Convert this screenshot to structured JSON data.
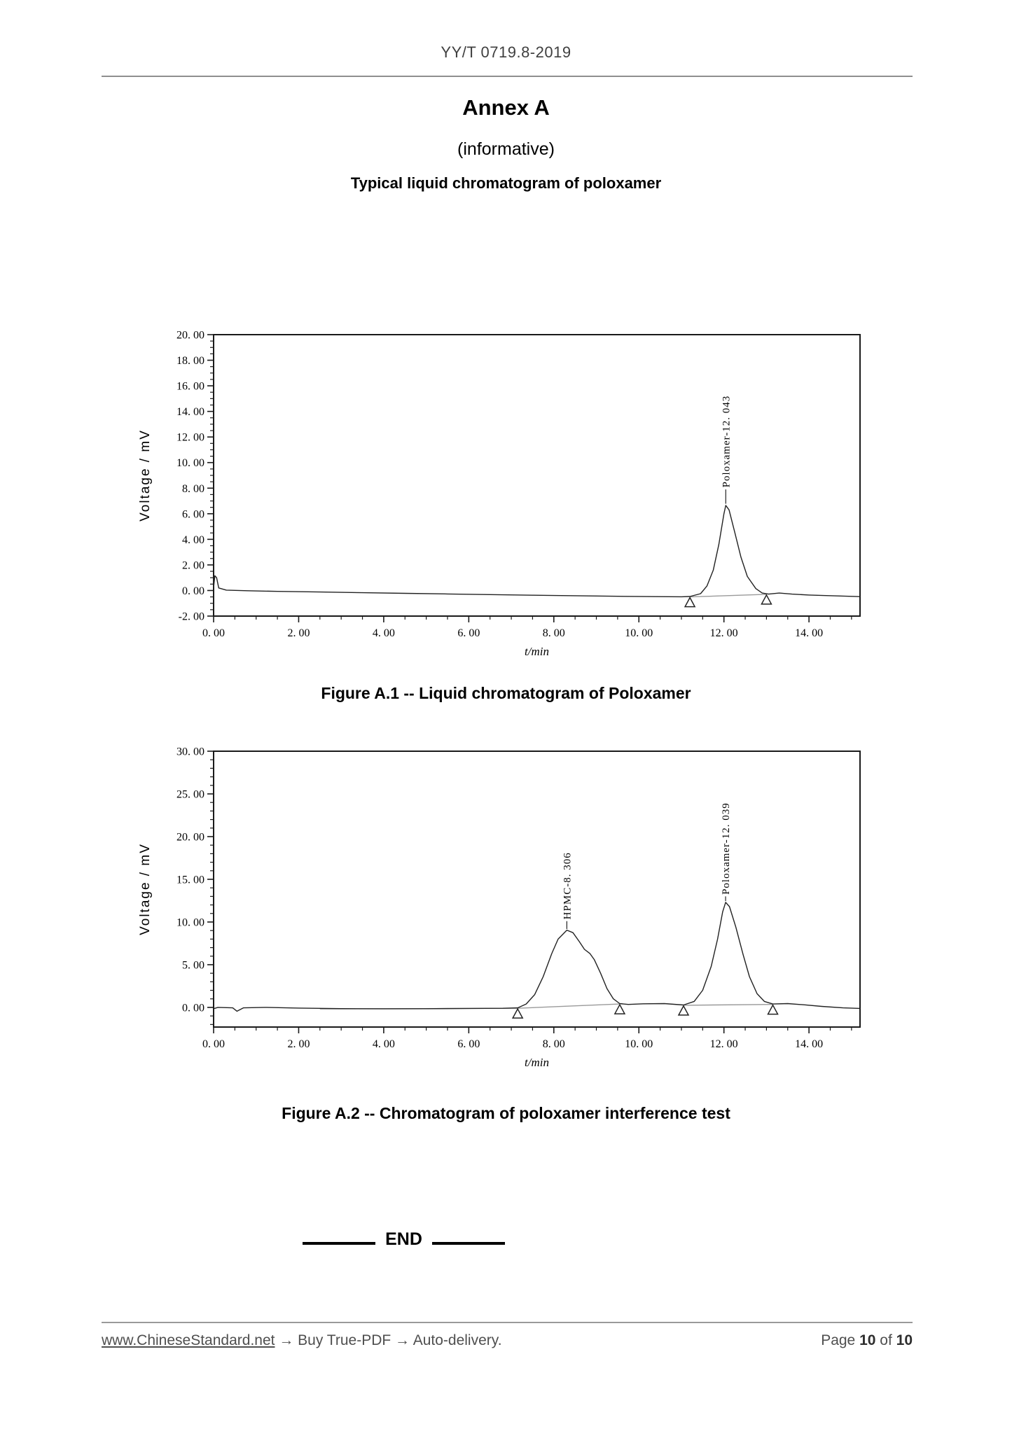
{
  "header": {
    "text": "YY/T 0719.8-2019"
  },
  "titles": {
    "annex": "Annex A",
    "informative": "(informative)",
    "subject": "Typical liquid chromatogram of poloxamer"
  },
  "captions": {
    "figure_a1": "Figure A.1 -- Liquid chromatogram of Poloxamer",
    "figure_a2": "Figure A.2 -- Chromatogram of poloxamer interference test"
  },
  "end_marker": {
    "label": "END"
  },
  "footer": {
    "link": "www.ChineseStandard.net",
    "tail": " → Buy True-PDF → Auto-delivery.",
    "page_label": "Page",
    "page_number": "10",
    "of_label": "of",
    "page_total": "10"
  },
  "chart_data": [
    {
      "type": "line",
      "name": "Figure A.1",
      "title": "Figure A.1 -- Liquid chromatogram of Poloxamer",
      "xlabel": "t/min",
      "ylabel": "Voltage / mV",
      "xlim": [
        0,
        15.2
      ],
      "ylim": [
        -2,
        20
      ],
      "grid": false,
      "x_tick_values": [
        0,
        2,
        4,
        6,
        8,
        10,
        12,
        14
      ],
      "x_tick_labels": [
        "0. 00",
        "2. 00",
        "4. 00",
        "6. 00",
        "8. 00",
        "10. 00",
        "12. 00",
        "14. 00"
      ],
      "x_minor_step": 0.5,
      "y_tick_values": [
        20,
        18,
        16,
        14,
        12,
        10,
        8,
        6,
        4,
        2,
        0,
        -2
      ],
      "y_tick_labels": [
        "20. 00",
        "18. 00",
        "16. 00",
        "14. 00",
        "12. 00",
        "10. 00",
        "8. 00",
        "6. 00",
        "4. 00",
        "2. 00",
        "0. 00",
        "-2. 00"
      ],
      "y_minor_step": 0.5,
      "peaks": [
        {
          "name": "Poloxamer",
          "retention_time_min": 12.043,
          "apex_mv": 6.65,
          "label": "Poloxamer-12. 043",
          "connector_mv": [
            6.78,
            7.9
          ],
          "label_start_mv": 8.05
        }
      ],
      "integration_markers": [
        [
          11.2,
          -0.5
        ],
        [
          13.0,
          -0.3
        ]
      ],
      "baseline_segments": [
        [
          [
            11.2,
            -0.5
          ],
          [
            13.0,
            -0.3
          ]
        ]
      ],
      "series": [
        {
          "name": "signal",
          "points": [
            [
              0,
              0.25
            ],
            [
              0.03,
              1.15
            ],
            [
              0.07,
              1.0
            ],
            [
              0.12,
              0.2
            ],
            [
              0.3,
              0.03
            ],
            [
              0.8,
              -0.02
            ],
            [
              1.5,
              -0.07
            ],
            [
              2.5,
              -0.12
            ],
            [
              3.5,
              -0.17
            ],
            [
              4.5,
              -0.22
            ],
            [
              5.5,
              -0.27
            ],
            [
              6.5,
              -0.32
            ],
            [
              7.5,
              -0.37
            ],
            [
              8.5,
              -0.41
            ],
            [
              9.5,
              -0.45
            ],
            [
              10.4,
              -0.48
            ],
            [
              11.0,
              -0.49
            ],
            [
              11.2,
              -0.47
            ],
            [
              11.45,
              -0.25
            ],
            [
              11.6,
              0.35
            ],
            [
              11.75,
              1.6
            ],
            [
              11.88,
              3.6
            ],
            [
              12.0,
              6.0
            ],
            [
              12.043,
              6.65
            ],
            [
              12.12,
              6.3
            ],
            [
              12.25,
              4.6
            ],
            [
              12.4,
              2.6
            ],
            [
              12.55,
              1.1
            ],
            [
              12.75,
              0.15
            ],
            [
              12.9,
              -0.2
            ],
            [
              13.05,
              -0.28
            ],
            [
              13.3,
              -0.2
            ],
            [
              13.6,
              -0.28
            ],
            [
              14.0,
              -0.35
            ],
            [
              14.6,
              -0.42
            ],
            [
              15.2,
              -0.48
            ]
          ]
        }
      ]
    },
    {
      "type": "line",
      "name": "Figure A.2",
      "title": "Figure A.2 -- Chromatogram of poloxamer interference test",
      "xlabel": "t/min",
      "ylabel": "Voltage / mV",
      "xlim": [
        0,
        15.2
      ],
      "ylim": [
        -2.3,
        30
      ],
      "grid": false,
      "x_tick_values": [
        0,
        2,
        4,
        6,
        8,
        10,
        12,
        14
      ],
      "x_tick_labels": [
        "0. 00",
        "2. 00",
        "4. 00",
        "6. 00",
        "8. 00",
        "10. 00",
        "12. 00",
        "14. 00"
      ],
      "x_minor_step": 0.5,
      "y_tick_values": [
        30,
        25,
        20,
        15,
        10,
        5,
        0
      ],
      "y_tick_labels": [
        "30. 00",
        "25. 00",
        "20. 00",
        "15. 00",
        "10. 00",
        "5. 00",
        "0. 00"
      ],
      "y_minor_step": 1,
      "peaks": [
        {
          "name": "HPMC",
          "retention_time_min": 8.306,
          "apex_mv": 9.05,
          "label": "HPMC-8. 306",
          "connector_mv": [
            9.18,
            10.1
          ],
          "label_start_mv": 10.3
        },
        {
          "name": "Poloxamer",
          "retention_time_min": 12.039,
          "apex_mv": 12.3,
          "label": "Poloxamer-12. 039",
          "connector_mv": [
            12.45,
            13.0
          ],
          "label_start_mv": 13.2
        }
      ],
      "integration_markers": [
        [
          7.15,
          -0.1
        ],
        [
          9.55,
          0.4
        ],
        [
          11.05,
          0.25
        ],
        [
          13.15,
          0.35
        ]
      ],
      "baseline_segments": [
        [
          [
            2.5,
            -0.18
          ],
          [
            7.15,
            -0.1
          ]
        ],
        [
          [
            7.15,
            -0.1
          ],
          [
            9.55,
            0.4
          ]
        ],
        [
          [
            11.05,
            0.25
          ],
          [
            13.15,
            0.35
          ]
        ]
      ],
      "series": [
        {
          "name": "signal",
          "points": [
            [
              0,
              -0.15
            ],
            [
              0.1,
              0.0
            ],
            [
              0.45,
              -0.05
            ],
            [
              0.55,
              -0.45
            ],
            [
              0.7,
              -0.05
            ],
            [
              1.2,
              0.0
            ],
            [
              2.0,
              -0.08
            ],
            [
              3.0,
              -0.14
            ],
            [
              4.0,
              -0.16
            ],
            [
              5.0,
              -0.15
            ],
            [
              6.0,
              -0.12
            ],
            [
              6.8,
              -0.1
            ],
            [
              7.15,
              -0.05
            ],
            [
              7.35,
              0.4
            ],
            [
              7.55,
              1.5
            ],
            [
              7.75,
              3.6
            ],
            [
              7.95,
              6.3
            ],
            [
              8.1,
              8.0
            ],
            [
              8.306,
              9.05
            ],
            [
              8.45,
              8.75
            ],
            [
              8.6,
              7.7
            ],
            [
              8.72,
              6.8
            ],
            [
              8.85,
              6.3
            ],
            [
              8.95,
              5.6
            ],
            [
              9.1,
              4.0
            ],
            [
              9.25,
              2.2
            ],
            [
              9.4,
              1.0
            ],
            [
              9.55,
              0.45
            ],
            [
              9.75,
              0.35
            ],
            [
              10.1,
              0.42
            ],
            [
              10.6,
              0.45
            ],
            [
              11.05,
              0.28
            ],
            [
              11.3,
              0.7
            ],
            [
              11.5,
              2.0
            ],
            [
              11.7,
              4.8
            ],
            [
              11.85,
              8.0
            ],
            [
              11.97,
              11.2
            ],
            [
              12.039,
              12.3
            ],
            [
              12.13,
              11.8
            ],
            [
              12.28,
              9.4
            ],
            [
              12.45,
              6.2
            ],
            [
              12.6,
              3.6
            ],
            [
              12.78,
              1.6
            ],
            [
              12.95,
              0.7
            ],
            [
              13.15,
              0.4
            ],
            [
              13.5,
              0.45
            ],
            [
              13.9,
              0.3
            ],
            [
              14.3,
              0.12
            ],
            [
              14.8,
              -0.05
            ],
            [
              15.2,
              -0.12
            ]
          ]
        }
      ]
    }
  ]
}
